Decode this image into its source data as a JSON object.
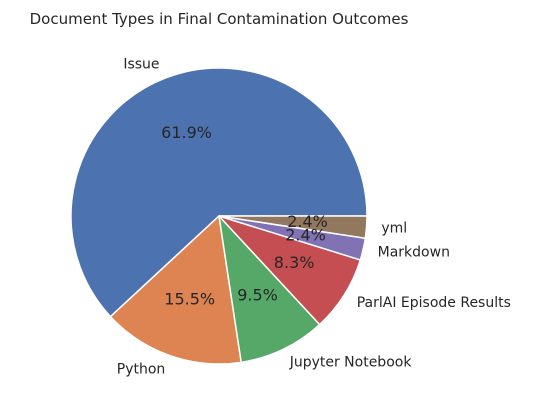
{
  "chart_data": {
    "type": "pie",
    "title": "Document Types in Final Contamination Outcomes",
    "start_angle_deg": 0,
    "direction": "counterclockwise",
    "slices": [
      {
        "label": "Issue",
        "value": 61.9,
        "pct_label": "61.9%",
        "color": "#4c72b0"
      },
      {
        "label": "Python",
        "value": 15.5,
        "pct_label": "15.5%",
        "color": "#dd8452"
      },
      {
        "label": "Jupyter Notebook",
        "value": 9.5,
        "pct_label": "9.5%",
        "color": "#55a868"
      },
      {
        "label": "ParlAI Episode Results",
        "value": 8.3,
        "pct_label": "8.3%",
        "color": "#c44e52"
      },
      {
        "label": "Markdown",
        "value": 2.4,
        "pct_label": "2.4%",
        "color": "#8172b3"
      },
      {
        "label": "yml",
        "value": 2.4,
        "pct_label": "2.4%",
        "color": "#937860"
      }
    ]
  }
}
